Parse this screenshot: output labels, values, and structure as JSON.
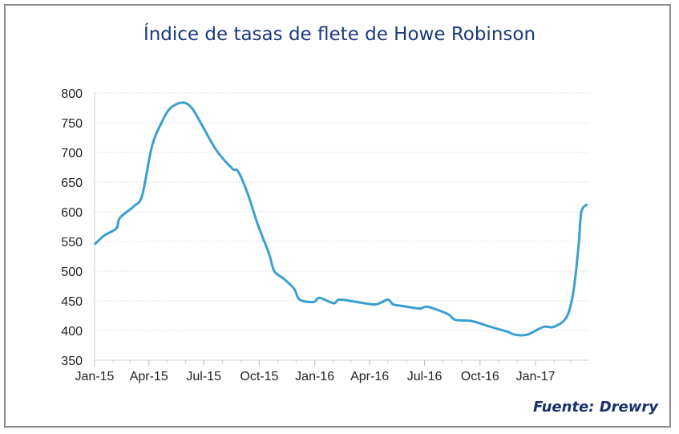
{
  "chart_data": {
    "type": "line",
    "title": "Índice de tasas de flete de Howe Robinson",
    "source": "Fuente: Drewry",
    "xlabel": "",
    "ylabel": "",
    "xlim": [
      "2015-01-01",
      "2017-03-31"
    ],
    "ylim": [
      350,
      800
    ],
    "yticks": [
      350,
      400,
      450,
      500,
      550,
      600,
      650,
      700,
      750,
      800
    ],
    "xticks": [
      {
        "date": "2015-01-01",
        "label": "Jan-15"
      },
      {
        "date": "2015-04-01",
        "label": "Apr-15"
      },
      {
        "date": "2015-07-01",
        "label": "Jul-15"
      },
      {
        "date": "2015-10-01",
        "label": "Oct-15"
      },
      {
        "date": "2016-01-01",
        "label": "Jan-16"
      },
      {
        "date": "2016-04-01",
        "label": "Apr-16"
      },
      {
        "date": "2016-07-01",
        "label": "Jul-16"
      },
      {
        "date": "2016-10-01",
        "label": "Oct-16"
      },
      {
        "date": "2017-01-01",
        "label": "Jan-17"
      }
    ],
    "grid": true,
    "line_color": "#3aa0d0",
    "series": [
      {
        "x": [
          "2015-01-01",
          "2015-01-17",
          "2015-02-06",
          "2015-02-12",
          "2015-03-08",
          "2015-03-21",
          "2015-04-06",
          "2015-04-23",
          "2015-05-07",
          "2015-05-27",
          "2015-06-11",
          "2015-06-27",
          "2015-07-21",
          "2015-08-17",
          "2015-08-27",
          "2015-09-12",
          "2015-09-28",
          "2015-10-17",
          "2015-10-26",
          "2015-11-11",
          "2015-11-28",
          "2015-12-07",
          "2015-12-30",
          "2016-01-09",
          "2016-02-01",
          "2016-02-11",
          "2016-03-11",
          "2016-04-11",
          "2016-05-01",
          "2016-05-10",
          "2016-05-27",
          "2016-06-23",
          "2016-07-06",
          "2016-08-08",
          "2016-08-21",
          "2016-09-17",
          "2016-10-16",
          "2016-11-15",
          "2016-11-28",
          "2016-12-18",
          "2017-01-14",
          "2017-01-31",
          "2017-02-20",
          "2017-03-02",
          "2017-03-08",
          "2017-03-14",
          "2017-03-18",
          "2017-03-28"
        ],
        "y": [
          545,
          560,
          572,
          590,
          610,
          628,
          710,
          752,
          775,
          784,
          775,
          748,
          705,
          673,
          668,
          630,
          580,
          530,
          500,
          487,
          470,
          452,
          448,
          455,
          446,
          452,
          448,
          444,
          452,
          444,
          441,
          437,
          440,
          428,
          418,
          416,
          407,
          398,
          393,
          393,
          406,
          406,
          420,
          450,
          490,
          550,
          600,
          613
        ]
      }
    ]
  }
}
